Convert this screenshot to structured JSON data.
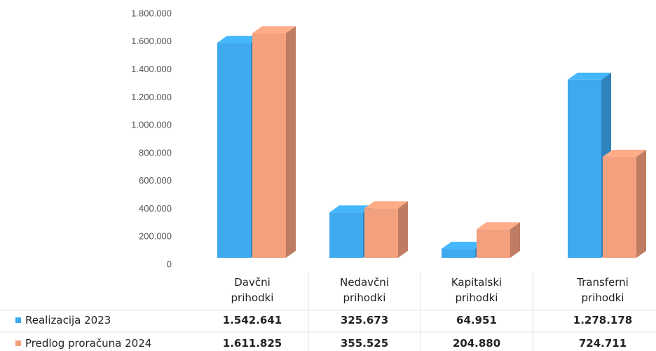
{
  "chart_data": {
    "type": "bar3d",
    "categories": [
      "Davčni prihodki",
      "Nedavčni prihodki",
      "Kapitalski prihodki",
      "Transferni prihodki"
    ],
    "series": [
      {
        "name": "Realizacija 2023",
        "color": "#3fa9f0",
        "values": [
          1542641,
          325673,
          64951,
          1278178
        ],
        "value_labels": [
          "1.542.641",
          "325.673",
          "64.951",
          "1.278.178"
        ]
      },
      {
        "name": "Predlog proračuna 2024",
        "color": "#f3a07e",
        "values": [
          1611825,
          355525,
          204880,
          724711
        ],
        "value_labels": [
          "1.611.825",
          "355.525",
          "204.880",
          "724.711"
        ]
      }
    ],
    "ylim": [
      0,
      1800000
    ],
    "yticks": [
      0,
      {
        "value": 200000,
        "label": "200.000"
      },
      {
        "value": 400000,
        "label": "400.000"
      },
      {
        "value": 600000,
        "label": "600.000"
      },
      {
        "value": 800000,
        "label": "800.000"
      },
      {
        "value": 1000000,
        "label": "1.000.000"
      },
      {
        "value": 1200000,
        "label": "1.200.000"
      },
      {
        "value": 1400000,
        "label": "1.400.000"
      },
      {
        "value": 1600000,
        "label": "1.600.000"
      },
      {
        "value": 1800000,
        "label": "1.800.000"
      }
    ],
    "grid": false
  }
}
